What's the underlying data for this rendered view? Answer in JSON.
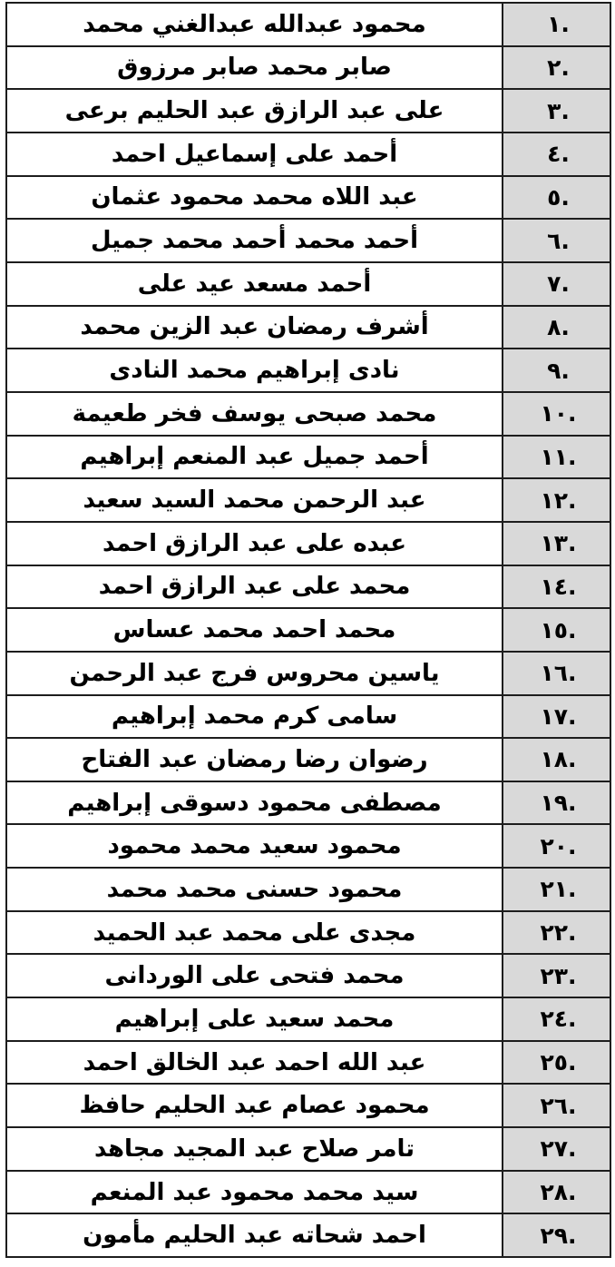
{
  "document": {
    "type": "numbered-name-list-table",
    "direction": "rtl",
    "row_count": 29
  },
  "colors": {
    "number_cell_bg": "#d9d9d9",
    "name_cell_bg": "#ffffff",
    "border": "#1d1d1d",
    "text": "#000000",
    "page_bg": "#ffffff"
  },
  "table": {
    "columns": [
      {
        "key": "num",
        "label": ""
      },
      {
        "key": "name",
        "label": ""
      }
    ],
    "rows": [
      {
        "num": "١.",
        "name": "محمود عبدالله عبدالغني محمد"
      },
      {
        "num": "٢.",
        "name": "صابر محمد صابر مرزوق"
      },
      {
        "num": "٣.",
        "name": "على عبد الرازق عبد الحليم برعى"
      },
      {
        "num": "٤.",
        "name": "أحمد على إسماعيل احمد"
      },
      {
        "num": "٥.",
        "name": "عبد اللاه محمد محمود عثمان"
      },
      {
        "num": "٦.",
        "name": "أحمد محمد أحمد محمد جميل"
      },
      {
        "num": "٧.",
        "name": "أحمد مسعد عيد على"
      },
      {
        "num": "٨.",
        "name": "أشرف رمضان عبد الزين محمد"
      },
      {
        "num": "٩.",
        "name": "نادى إبراهيم محمد النادى"
      },
      {
        "num": "١٠.",
        "name": "محمد صبحى يوسف فخر طعيمة"
      },
      {
        "num": "١١.",
        "name": "أحمد جميل عبد المنعم إبراهيم"
      },
      {
        "num": "١٢.",
        "name": "عبد الرحمن محمد السيد سعيد"
      },
      {
        "num": "١٣.",
        "name": "عبده على عبد الرازق احمد"
      },
      {
        "num": "١٤.",
        "name": "محمد على عبد الرازق احمد"
      },
      {
        "num": "١٥.",
        "name": "محمد احمد محمد عساس"
      },
      {
        "num": "١٦.",
        "name": "ياسين محروس فرج عبد الرحمن"
      },
      {
        "num": "١٧.",
        "name": "سامى كرم محمد إبراهيم"
      },
      {
        "num": "١٨.",
        "name": "رضوان رضا رمضان عبد الفتاح"
      },
      {
        "num": "١٩.",
        "name": "مصطفى محمود دسوقى إبراهيم"
      },
      {
        "num": "٢٠.",
        "name": "محمود سعيد محمد محمود"
      },
      {
        "num": "٢١.",
        "name": "محمود حسنى محمد محمد"
      },
      {
        "num": "٢٢.",
        "name": "مجدى على محمد عبد الحميد"
      },
      {
        "num": "٢٣.",
        "name": "محمد فتحى على الوردانى"
      },
      {
        "num": "٢٤.",
        "name": "محمد سعيد على إبراهيم"
      },
      {
        "num": "٢٥.",
        "name": "عبد الله احمد عبد الخالق احمد"
      },
      {
        "num": "٢٦.",
        "name": "محمود عصام عبد الحليم حافظ"
      },
      {
        "num": "٢٧.",
        "name": "تامر صلاح عبد المجيد مجاهد"
      },
      {
        "num": "٢٨.",
        "name": "سيد محمد محمود عبد المنعم"
      },
      {
        "num": "٢٩.",
        "name": "احمد شحاته عبد الحليم مأمون"
      }
    ]
  }
}
